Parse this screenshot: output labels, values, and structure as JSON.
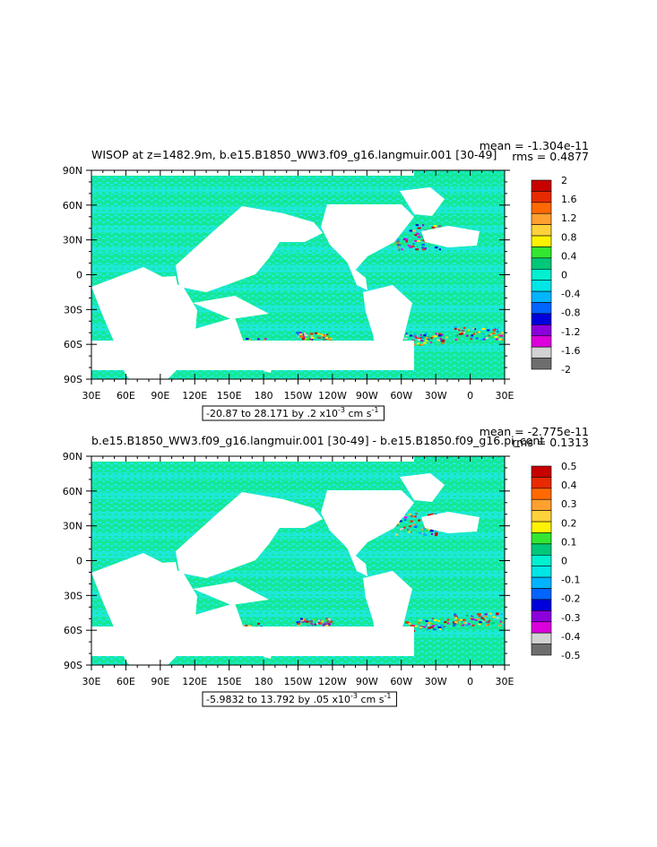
{
  "chart_data": [
    {
      "type": "heatmap",
      "title": "WISOP at z=1482.9m, b.e15.B1850_WW3.f09_g16.langmuir.001 [30-49]",
      "stats": {
        "mean": "mean = -1.304e-11",
        "rms": "rms = 0.4877"
      },
      "x_ticks": [
        "30E",
        "60E",
        "90E",
        "120E",
        "150E",
        "180",
        "150W",
        "120W",
        "90W",
        "60W",
        "30W",
        "0",
        "30E"
      ],
      "y_ticks": [
        "90N",
        "60N",
        "30N",
        "0",
        "30S",
        "60S",
        "90S"
      ],
      "xlim": [
        30,
        390
      ],
      "ylim": [
        -90,
        90
      ],
      "range_note": "-20.87 to 28.171 by .2 x10",
      "range_exp": "-3",
      "range_units_pre": " cm s",
      "range_units_exp": "-1",
      "colorbar_levels": [
        "2",
        "1.6",
        "1.2",
        "0.8",
        "0.4",
        "0",
        "-0.4",
        "-0.8",
        "-1.2",
        "-1.6",
        "-2"
      ],
      "colorbar_min": -2,
      "colorbar_max": 2
    },
    {
      "type": "heatmap",
      "title": "b.e15.B1850_WW3.f09_g16.langmuir.001 [30-49] - b.e15.B1850.f09_g16.pi_cont",
      "stats": {
        "mean": "mean = -2.775e-11",
        "rms": "rms = 0.1313"
      },
      "x_ticks": [
        "30E",
        "60E",
        "90E",
        "120E",
        "150E",
        "180",
        "150W",
        "120W",
        "90W",
        "60W",
        "30W",
        "0",
        "30E"
      ],
      "y_ticks": [
        "90N",
        "60N",
        "30N",
        "0",
        "30S",
        "60S",
        "90S"
      ],
      "xlim": [
        30,
        390
      ],
      "ylim": [
        -90,
        90
      ],
      "range_note": "-5.9832 to 13.792 by .05 x10",
      "range_exp": "-3",
      "range_units_pre": " cm s",
      "range_units_exp": "-1",
      "colorbar_levels": [
        "0.5",
        "0.4",
        "0.3",
        "0.2",
        "0.1",
        "0",
        "-0.1",
        "-0.2",
        "-0.3",
        "-0.4",
        "-0.5"
      ],
      "colorbar_min": -0.5,
      "colorbar_max": 0.5
    }
  ],
  "palette": [
    "#c80000",
    "#e82a00",
    "#ff6a00",
    "#ffa030",
    "#ffd23c",
    "#fff200",
    "#32e632",
    "#00c878",
    "#00f0d0",
    "#00e6e6",
    "#00b4ff",
    "#0064ff",
    "#0000dc",
    "#8c00dc",
    "#dc00dc",
    "#d2d2d2",
    "#6e6e6e"
  ],
  "land_color": "#ffffff",
  "ocean_base_colors": [
    "#00e6a0",
    "#00e6dc"
  ]
}
